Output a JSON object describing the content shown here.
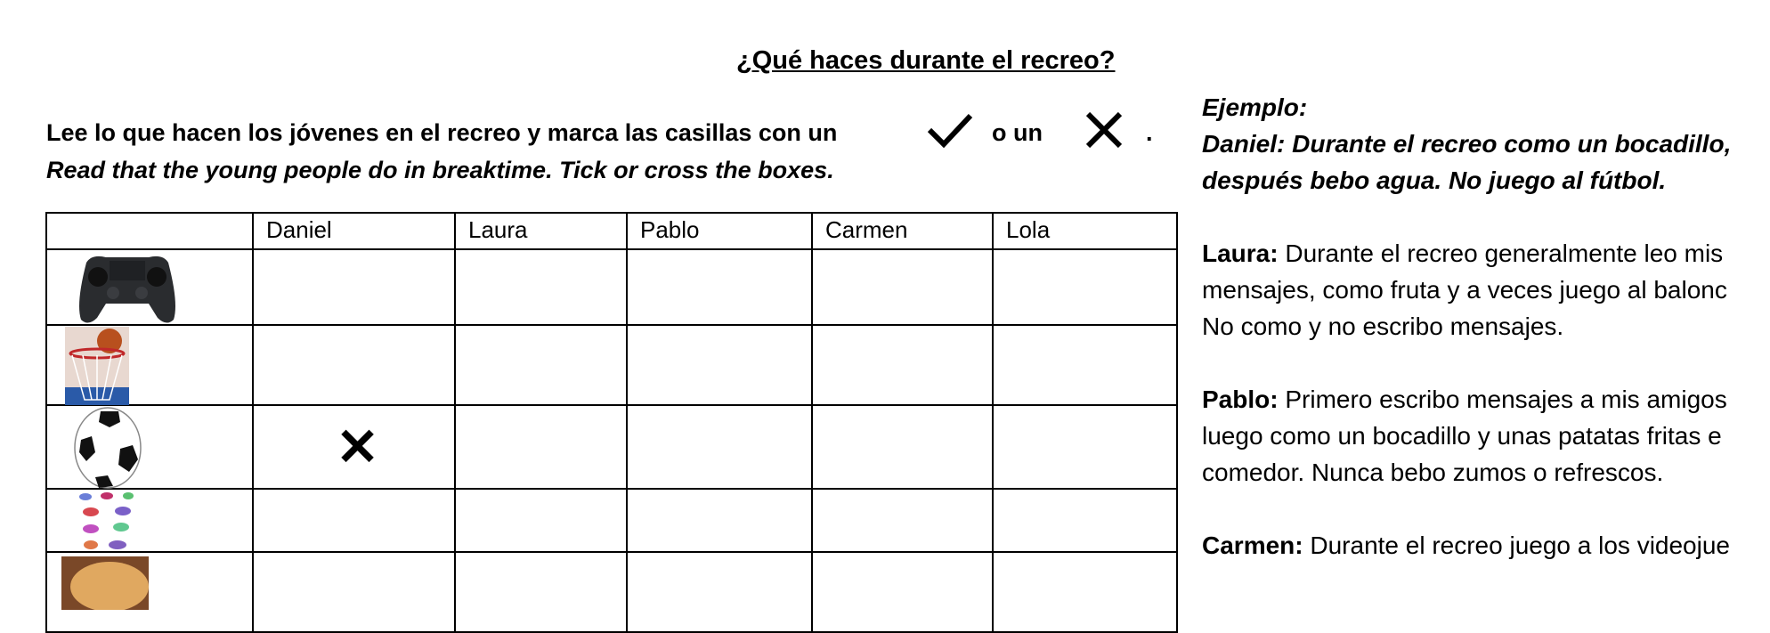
{
  "title": "¿Qué haces durante el recreo?",
  "instructions": {
    "line1": "Lee lo que hacen los jóvenes en el recreo y marca las casillas con un",
    "connector": "o un",
    "end": ".",
    "line2": "Read that the young people do in breaktime. Tick or cross the boxes.",
    "tick_icon": "check-mark-icon",
    "cross_icon": "cross-mark-icon"
  },
  "table": {
    "columns": [
      "",
      "Daniel",
      "Laura",
      "Pablo",
      "Carmen",
      "Lola"
    ],
    "rows": [
      {
        "icon": "game-controller-icon",
        "marks": [
          "",
          "",
          "",
          "",
          ""
        ]
      },
      {
        "icon": "basketball-hoop-icon",
        "marks": [
          "",
          "",
          "",
          "",
          ""
        ]
      },
      {
        "icon": "football-icon",
        "marks": [
          "✕",
          "",
          "",
          "",
          ""
        ]
      },
      {
        "icon": "sweets-icon",
        "marks": [
          "",
          "",
          "",
          "",
          ""
        ]
      },
      {
        "icon": "bread-roll-icon",
        "marks": [
          "",
          "",
          "",
          "",
          ""
        ]
      }
    ]
  },
  "right": {
    "example_label": "Ejemplo:",
    "example_line1": "Daniel: Durante el recreo como un bocadillo,",
    "example_line2": "después bebo agua. No juego al fútbol.",
    "laura_name": "Laura:",
    "laura_line1": " Durante el recreo generalmente leo mis",
    "laura_line2": "mensajes, como fruta y a veces juego al balonc",
    "laura_line3": "No como y no escribo mensajes.",
    "pablo_name": "Pablo:",
    "pablo_line1": " Primero escribo mensajes a mis amigos",
    "pablo_line2": "luego como un bocadillo y unas patatas fritas e",
    "pablo_line3": "comedor. Nunca bebo zumos o refrescos.",
    "carmen_name": "Carmen:",
    "carmen_line1": " Durante el recreo juego a los videojue"
  }
}
